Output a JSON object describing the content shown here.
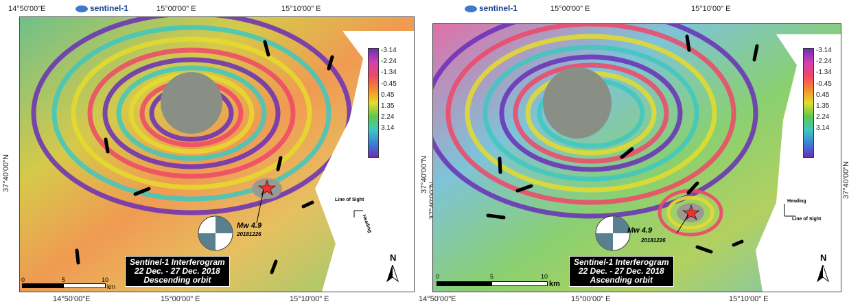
{
  "left": {
    "top_coords": [
      "14°50'00\"E",
      "15°00'00\" E",
      "15°10'00\" E"
    ],
    "bottom_coords": [
      "14°50'00\"E",
      "15°00'00\" E",
      "15°10'00\" E"
    ],
    "lat_label": "37°40'00\"N",
    "logo": "sentinel-1",
    "colorbar_ticks": [
      "-3.14",
      "-2.24",
      "-1.34",
      "-0.45",
      "0.45",
      "1.35",
      "2.24",
      "3.14"
    ],
    "title_lines": [
      "Sentinel-1 Interferogram",
      "22 Dec. - 27 Dec. 2018",
      "Descending orbit"
    ],
    "mw": "Mw 4.9",
    "date": "20181226",
    "los": "Line of Sight",
    "heading": "Heading",
    "north": "N",
    "scale_ticks": [
      "0",
      "5",
      "10"
    ],
    "scale_unit": "km"
  },
  "right": {
    "top_coords": [
      "15°00'00\" E",
      "15°10'00\" E"
    ],
    "bottom_coords": [
      "14°50'00\"E",
      "15°00'00\" E",
      "15°10'00\" E"
    ],
    "lat_label_left": "37°40'00\"N",
    "lat_label_left2": "37°40'00\"N",
    "lat_label_right": "37°40'00\"N",
    "logo": "sentinel-1",
    "colorbar_ticks": [
      "-3.14",
      "-2.24",
      "-1.34",
      "-0.45",
      "0.45",
      "1.35",
      "2.24",
      "3.14"
    ],
    "title_lines": [
      "Sentinel-1 Interferogram",
      "22 Dec. - 27 Dec. 2018",
      "Ascending orbit"
    ],
    "mw": "Mw 4.9",
    "date": "20181226",
    "los": "Line of Sight",
    "heading": "Heading",
    "north": "N",
    "scale_ticks": [
      "0",
      "5",
      "10"
    ],
    "scale_unit": "km"
  }
}
